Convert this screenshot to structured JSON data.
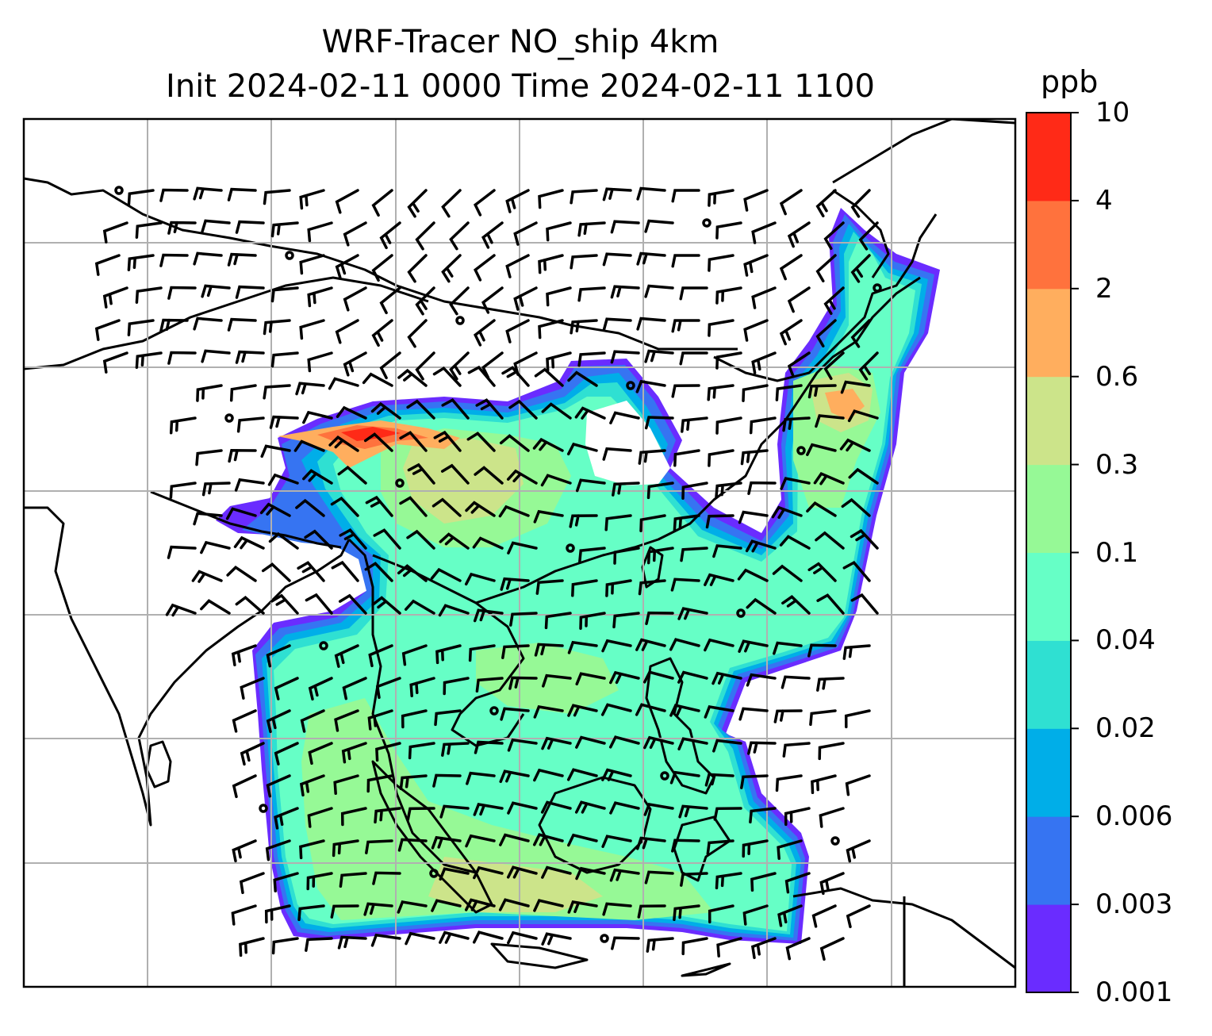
{
  "chart_data": {
    "type": "heatmap",
    "title": "WRF-Tracer NO_ship 4km",
    "subtitle": "Init 2024-02-11 0000 Time 2024-02-11 1100",
    "variable": "NO_ship",
    "xlabel": "",
    "ylabel": "",
    "grid": true,
    "overlays": [
      "coastlines",
      "wind barbs"
    ],
    "colorbar": {
      "unit": "ppb",
      "placement": "right",
      "levels": [
        0.001,
        0.003,
        0.006,
        0.02,
        0.04,
        0.1,
        0.3,
        0.6,
        2,
        4,
        10
      ],
      "tick_labels": [
        "0.001",
        "0.003",
        "0.006",
        "0.02",
        "0.04",
        "0.1",
        "0.3",
        "0.6",
        "2",
        "4",
        "10"
      ],
      "colors": [
        "#6a2cff",
        "#3674f2",
        "#00aee8",
        "#2fe0d2",
        "#66ffc6",
        "#96f996",
        "#cce48a",
        "#ffae5e",
        "#ff723d",
        "#ff2a17"
      ]
    }
  }
}
